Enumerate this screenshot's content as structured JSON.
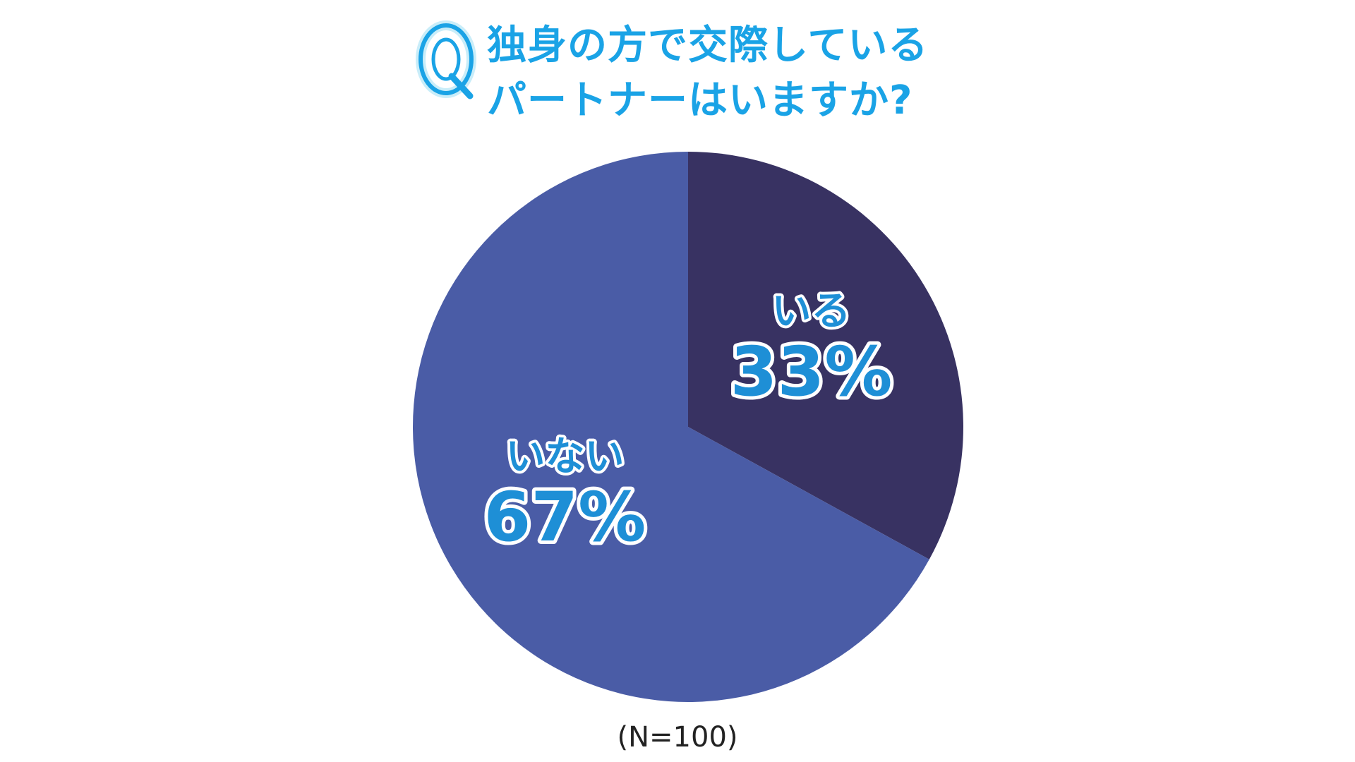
{
  "header": {
    "badge": "Q",
    "title_line1": "独身の方で交際している",
    "title_line2": "パートナーはいますか?"
  },
  "chart_data": {
    "type": "pie",
    "start_angle_deg": 0,
    "direction": "clockwise",
    "slices": [
      {
        "label": "いる",
        "value": 33,
        "value_label": "33%",
        "color": "#383262"
      },
      {
        "label": "いない",
        "value": 67,
        "value_label": "67%",
        "color": "#4a5ca6"
      }
    ],
    "total_value": 100
  },
  "footer": {
    "sample_note": "(N=100)"
  },
  "colors": {
    "title": "#1aa3e6",
    "label_fill": "#1e8fd6",
    "label_stroke": "#ffffff",
    "background": "#ffffff"
  }
}
